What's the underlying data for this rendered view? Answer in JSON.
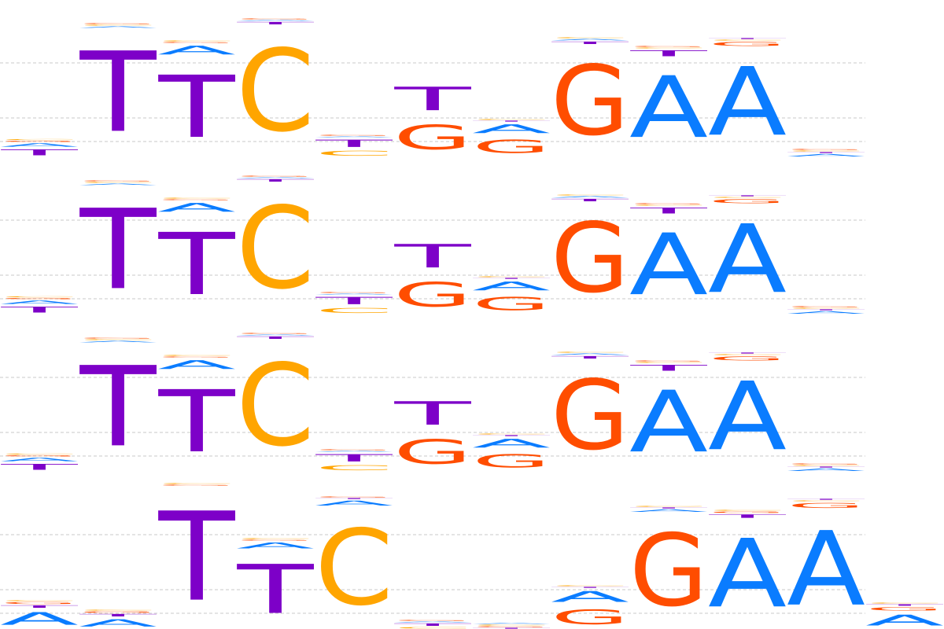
{
  "colors": {
    "A": "#0a7cff",
    "C": "#ffa500",
    "G": "#ff4d00",
    "T": "#7d00c8",
    "grid": "#c8c8c8"
  },
  "chart_data": {
    "type": "sequence-logo",
    "grid": true,
    "ylim": [
      0,
      2
    ],
    "gridlines": [
      0.2,
      0.5,
      1.2
    ],
    "logos": [
      {
        "start_column": 0,
        "columns": [
          [
            [
              "T",
              0.12
            ],
            [
              "A",
              0.07
            ],
            [
              "G",
              0.025
            ],
            [
              "C",
              0.02
            ]
          ],
          [
            [
              "T",
              1.64
            ],
            [
              "A",
              0.03
            ],
            [
              "C",
              0.02
            ],
            [
              "G",
              0.02
            ]
          ],
          [
            [
              "T",
              1.27
            ],
            [
              "A",
              0.18
            ],
            [
              "G",
              0.02
            ],
            [
              "C",
              0.02
            ]
          ],
          [
            [
              "C",
              1.68
            ],
            [
              "T",
              0.05
            ],
            [
              "A",
              0.02
            ],
            [
              "G",
              0.02
            ]
          ],
          [
            [
              "C",
              0.1
            ],
            [
              "T",
              0.15
            ],
            [
              "A",
              0.02
            ],
            [
              "G",
              0.02
            ]
          ],
          [
            [
              "G",
              0.5
            ],
            [
              "T",
              0.48
            ]
          ],
          [
            [
              "G",
              0.27
            ],
            [
              "A",
              0.18
            ],
            [
              "T",
              0.02
            ],
            [
              "C",
              0.02
            ]
          ],
          [
            [
              "G",
              1.43
            ],
            [
              "T",
              0.05
            ],
            [
              "A",
              0.03
            ],
            [
              "C",
              0.02
            ]
          ],
          [
            [
              "A",
              1.26
            ],
            [
              "T",
              0.12
            ],
            [
              "C",
              0.02
            ],
            [
              "G",
              0.02
            ]
          ],
          [
            [
              "A",
              1.4
            ],
            [
              "G",
              0.08
            ],
            [
              "C",
              0.02
            ],
            [
              "T",
              0.02
            ]
          ],
          [
            [
              "A",
              0.05
            ],
            [
              "T",
              0.02
            ],
            [
              "C",
              0.02
            ],
            [
              "G",
              0.02
            ]
          ]
        ]
      },
      {
        "start_column": 0,
        "columns": [
          [
            [
              "T",
              0.12
            ],
            [
              "A",
              0.07
            ],
            [
              "G",
              0.025
            ],
            [
              "C",
              0.02
            ]
          ],
          [
            [
              "T",
              1.64
            ],
            [
              "A",
              0.03
            ],
            [
              "C",
              0.02
            ],
            [
              "G",
              0.02
            ]
          ],
          [
            [
              "T",
              1.27
            ],
            [
              "A",
              0.18
            ],
            [
              "G",
              0.02
            ],
            [
              "C",
              0.02
            ]
          ],
          [
            [
              "C",
              1.68
            ],
            [
              "T",
              0.05
            ],
            [
              "A",
              0.02
            ],
            [
              "G",
              0.02
            ]
          ],
          [
            [
              "C",
              0.1
            ],
            [
              "T",
              0.15
            ],
            [
              "A",
              0.02
            ],
            [
              "G",
              0.02
            ]
          ],
          [
            [
              "G",
              0.5
            ],
            [
              "T",
              0.48
            ]
          ],
          [
            [
              "G",
              0.27
            ],
            [
              "A",
              0.18
            ],
            [
              "T",
              0.02
            ],
            [
              "C",
              0.02
            ]
          ],
          [
            [
              "G",
              1.43
            ],
            [
              "T",
              0.05
            ],
            [
              "A",
              0.03
            ],
            [
              "C",
              0.02
            ]
          ],
          [
            [
              "A",
              1.26
            ],
            [
              "T",
              0.12
            ],
            [
              "C",
              0.02
            ],
            [
              "G",
              0.02
            ]
          ],
          [
            [
              "A",
              1.4
            ],
            [
              "G",
              0.08
            ],
            [
              "C",
              0.02
            ],
            [
              "T",
              0.02
            ]
          ],
          [
            [
              "A",
              0.05
            ],
            [
              "T",
              0.02
            ],
            [
              "C",
              0.02
            ],
            [
              "G",
              0.02
            ]
          ]
        ]
      },
      {
        "start_column": 0,
        "columns": [
          [
            [
              "T",
              0.12
            ],
            [
              "A",
              0.07
            ],
            [
              "G",
              0.025
            ],
            [
              "C",
              0.02
            ]
          ],
          [
            [
              "T",
              1.64
            ],
            [
              "A",
              0.03
            ],
            [
              "C",
              0.02
            ],
            [
              "G",
              0.02
            ]
          ],
          [
            [
              "T",
              1.27
            ],
            [
              "A",
              0.18
            ],
            [
              "G",
              0.02
            ],
            [
              "C",
              0.02
            ]
          ],
          [
            [
              "C",
              1.68
            ],
            [
              "T",
              0.05
            ],
            [
              "A",
              0.02
            ],
            [
              "G",
              0.02
            ]
          ],
          [
            [
              "C",
              0.1
            ],
            [
              "T",
              0.15
            ],
            [
              "A",
              0.02
            ],
            [
              "G",
              0.02
            ]
          ],
          [
            [
              "G",
              0.5
            ],
            [
              "T",
              0.48
            ]
          ],
          [
            [
              "G",
              0.27
            ],
            [
              "A",
              0.18
            ],
            [
              "T",
              0.02
            ],
            [
              "C",
              0.02
            ]
          ],
          [
            [
              "G",
              1.43
            ],
            [
              "T",
              0.05
            ],
            [
              "A",
              0.03
            ],
            [
              "C",
              0.02
            ]
          ],
          [
            [
              "A",
              1.26
            ],
            [
              "T",
              0.12
            ],
            [
              "C",
              0.02
            ],
            [
              "G",
              0.02
            ]
          ],
          [
            [
              "A",
              1.4
            ],
            [
              "G",
              0.08
            ],
            [
              "C",
              0.02
            ],
            [
              "T",
              0.02
            ]
          ],
          [
            [
              "A",
              0.05
            ],
            [
              "T",
              0.02
            ],
            [
              "C",
              0.02
            ],
            [
              "G",
              0.02
            ]
          ]
        ]
      },
      {
        "start_column": 0,
        "columns": [
          [
            [
              "A",
              0.26
            ],
            [
              "T",
              0.05
            ],
            [
              "G",
              0.04
            ],
            [
              "C",
              0.02
            ]
          ],
          [
            [
              "A",
              0.15
            ],
            [
              "T",
              0.05
            ],
            [
              "G",
              0.03
            ],
            [
              "C",
              0.02
            ]
          ],
          [
            [
              "T",
              1.82
            ],
            [
              "G",
              0.02
            ],
            [
              "C",
              0.02
            ]
          ],
          [
            [
              "T",
              1.0
            ],
            [
              "A",
              0.12
            ],
            [
              "G",
              0.02
            ],
            [
              "C",
              0.02
            ]
          ],
          [
            [
              "C",
              1.55
            ],
            [
              "A",
              0.1
            ],
            [
              "T",
              0.02
            ],
            [
              "G",
              0.02
            ]
          ],
          [
            [
              "C",
              0.03
            ],
            [
              "T",
              0.05
            ],
            [
              "A",
              0.02
            ],
            [
              "G",
              0.02
            ]
          ],
          [
            [
              "T",
              0.02
            ],
            [
              "G",
              0.02
            ],
            [
              "C",
              0.02
            ],
            [
              "A",
              0.02
            ]
          ],
          [
            [
              "G",
              0.3
            ],
            [
              "A",
              0.22
            ],
            [
              "T",
              0.02
            ],
            [
              "C",
              0.02
            ]
          ],
          [
            [
              "G",
              1.48
            ],
            [
              "A",
              0.05
            ],
            [
              "T",
              0.02
            ],
            [
              "C",
              0.02
            ]
          ],
          [
            [
              "A",
              1.4
            ],
            [
              "T",
              0.07
            ],
            [
              "G",
              0.03
            ],
            [
              "C",
              0.02
            ]
          ],
          [
            [
              "A",
              1.52
            ],
            [
              "G",
              0.1
            ],
            [
              "C",
              0.02
            ],
            [
              "T",
              0.02
            ]
          ],
          [
            [
              "A",
              0.22
            ],
            [
              "G",
              0.07
            ],
            [
              "T",
              0.03
            ],
            [
              "C",
              0.02
            ]
          ]
        ]
      }
    ]
  }
}
